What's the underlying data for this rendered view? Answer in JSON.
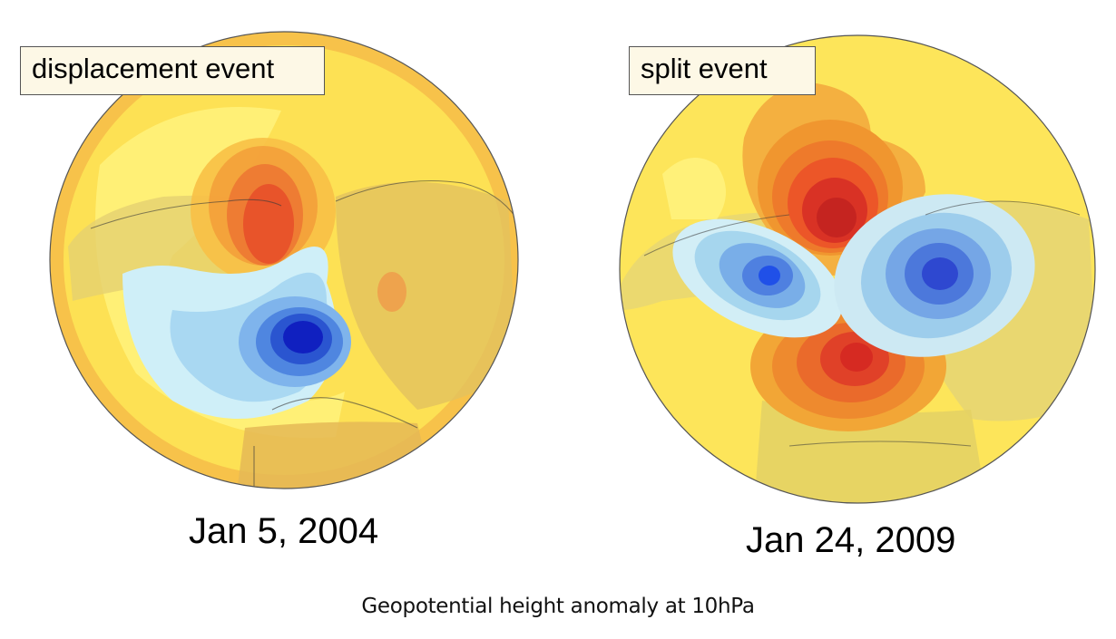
{
  "panels": [
    {
      "label": "displacement event",
      "date": "Jan 5, 2004",
      "colors": {
        "background": "#fde55a",
        "warm_max": "#e8502a",
        "cold_max": "#1020c0"
      }
    },
    {
      "label": "split event",
      "date": "Jan 24, 2009",
      "colors": {
        "background": "#fde55a",
        "warm_max": "#d02020",
        "cold_max": "#2040d0"
      }
    }
  ],
  "caption": "Geopotential height anomaly at 10hPa"
}
